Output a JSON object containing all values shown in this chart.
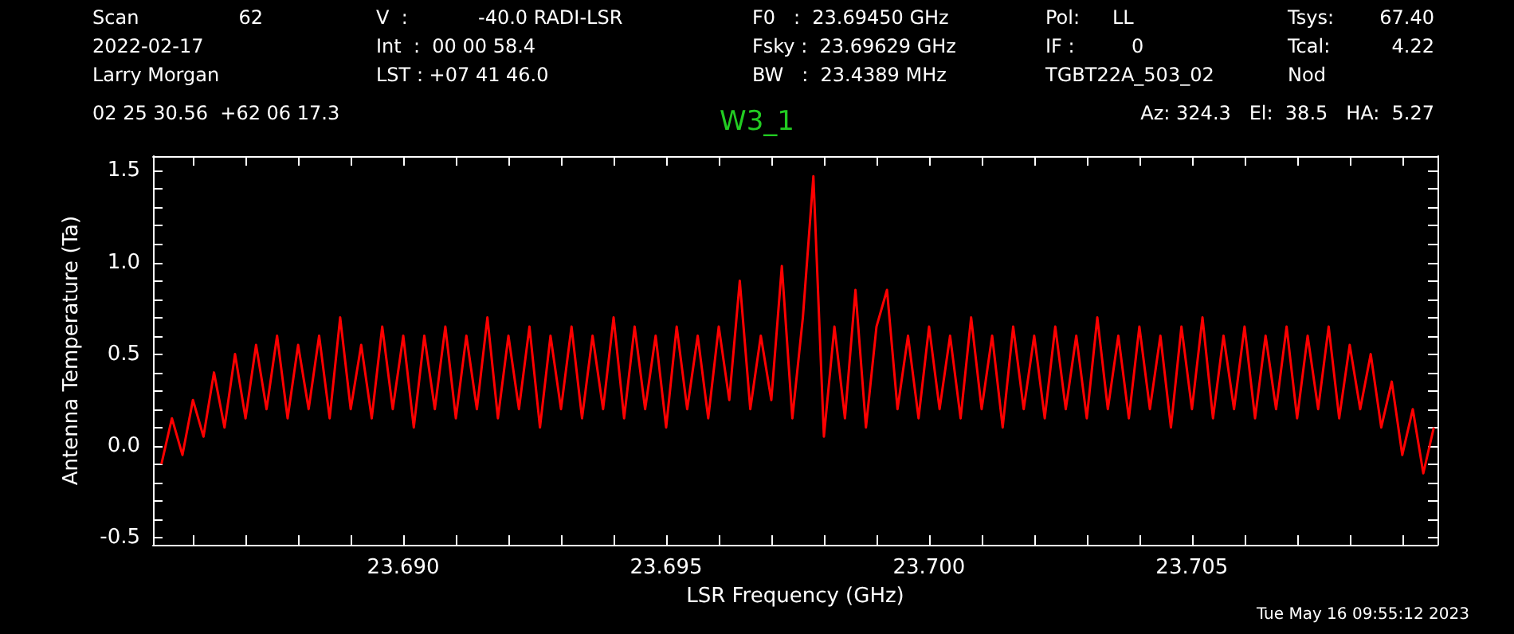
{
  "chart_data": {
    "type": "line",
    "title": "W3_1",
    "xlabel": "LSR Frequency (GHz)",
    "ylabel": "Antenna Temperature (Ta)",
    "annotations": [
      "Scan",
      "62",
      "2022-02-17",
      "Larry Morgan",
      "V  :",
      "-40.0 RADI-LSR",
      "Int  :  00 00 58.4",
      "LST : +07 41 46.0",
      "F0   :  23.69450 GHz",
      "Fsky :  23.69629 GHz",
      "BW   :  23.4389 MHz",
      "Pol:",
      "LL",
      "IF :",
      "0",
      "TGBT22A_503_02",
      "Tsys:",
      "67.40",
      "Tcal:",
      "4.22",
      "Nod",
      "02 25 30.56  +62 06 17.3",
      "Az: 324.3   El:  38.5   HA:  5.27",
      "Tue May 16 09:55:12 2023"
    ],
    "xlim": [
      23.68524,
      23.70967
    ],
    "ylim": [
      -0.54,
      1.58
    ],
    "xticks": [
      {
        "value": 23.686,
        "label": null
      },
      {
        "value": 23.687,
        "label": null
      },
      {
        "value": 23.688,
        "label": null
      },
      {
        "value": 23.689,
        "label": null
      },
      {
        "value": 23.69,
        "label": "23.690"
      },
      {
        "value": 23.691,
        "label": null
      },
      {
        "value": 23.692,
        "label": null
      },
      {
        "value": 23.693,
        "label": null
      },
      {
        "value": 23.694,
        "label": null
      },
      {
        "value": 23.695,
        "label": "23.695"
      },
      {
        "value": 23.696,
        "label": null
      },
      {
        "value": 23.697,
        "label": null
      },
      {
        "value": 23.698,
        "label": null
      },
      {
        "value": 23.699,
        "label": null
      },
      {
        "value": 23.7,
        "label": "23.700"
      },
      {
        "value": 23.701,
        "label": null
      },
      {
        "value": 23.702,
        "label": null
      },
      {
        "value": 23.703,
        "label": null
      },
      {
        "value": 23.704,
        "label": null
      },
      {
        "value": 23.705,
        "label": "23.705"
      },
      {
        "value": 23.706,
        "label": null
      },
      {
        "value": 23.707,
        "label": null
      },
      {
        "value": 23.708,
        "label": null
      },
      {
        "value": 23.709,
        "label": null
      }
    ],
    "yticks": [
      -0.5,
      {
        "value": -0.4,
        "label": null
      },
      {
        "value": -0.3,
        "label": null
      },
      {
        "value": -0.2,
        "label": null
      },
      {
        "value": -0.1,
        "label": null
      },
      {
        "value": 0,
        "label": "0.0"
      },
      {
        "value": 0.1,
        "label": null
      },
      {
        "value": 0.2,
        "label": null
      },
      {
        "value": 0.3,
        "label": null
      },
      {
        "value": 0.4,
        "label": null
      },
      0.5,
      {
        "value": 0.6,
        "label": null
      },
      {
        "value": 0.7,
        "label": null
      },
      {
        "value": 0.8,
        "label": null
      },
      {
        "value": 0.9,
        "label": null
      },
      {
        "value": 1,
        "label": "1.0"
      },
      {
        "value": 1.1,
        "label": null
      },
      {
        "value": 1.2,
        "label": null
      },
      {
        "value": 1.3,
        "label": null
      },
      {
        "value": 1.4,
        "label": null
      },
      1.5
    ],
    "marker": "none",
    "line_style": "solid",
    "grid": false,
    "series": [
      {
        "color": "#ff0000",
        "x": [
          23.6854,
          23.6856,
          23.6858,
          23.686,
          23.6862,
          23.6864,
          23.6866,
          23.6868,
          23.687,
          23.6872,
          23.6874,
          23.6876,
          23.6878,
          23.688,
          23.6882,
          23.6884,
          23.6886,
          23.6888,
          23.689,
          23.6892,
          23.6894,
          23.6896,
          23.6898,
          23.69,
          23.6902,
          23.6904,
          23.6906,
          23.6908,
          23.691,
          23.6912,
          23.6914,
          23.6916,
          23.6918,
          23.692,
          23.6922,
          23.6924,
          23.6926,
          23.6928,
          23.693,
          23.6932,
          23.6934,
          23.6936,
          23.6938,
          23.694,
          23.6942,
          23.6944,
          23.6946,
          23.6948,
          23.695,
          23.6952,
          23.6954,
          23.6956,
          23.6958,
          23.696,
          23.6962,
          23.6964,
          23.6966,
          23.6968,
          23.697,
          23.6972,
          23.6974,
          23.6976,
          23.6978,
          23.698,
          23.6982,
          23.6984,
          23.6986,
          23.6988,
          23.699,
          23.6992,
          23.6994,
          23.6996,
          23.6998,
          23.7,
          23.7002,
          23.7004,
          23.7006,
          23.7008,
          23.701,
          23.7012,
          23.7014,
          23.7016,
          23.7018,
          23.702,
          23.7022,
          23.7024,
          23.7026,
          23.7028,
          23.703,
          23.7032,
          23.7034,
          23.7036,
          23.7038,
          23.704,
          23.7042,
          23.7044,
          23.7046,
          23.7048,
          23.705,
          23.7052,
          23.7054,
          23.7056,
          23.7058,
          23.706,
          23.7062,
          23.7064,
          23.7066,
          23.7068,
          23.707,
          23.7072,
          23.7074,
          23.7076,
          23.7078,
          23.708,
          23.7082,
          23.7084,
          23.7086,
          23.7088,
          23.709,
          23.7092,
          23.7094,
          23.7096
        ],
        "values": [
          -0.1,
          0.15,
          -0.05,
          0.25,
          0.05,
          0.4,
          0.1,
          0.5,
          0.15,
          0.55,
          0.2,
          0.6,
          0.15,
          0.55,
          0.2,
          0.6,
          0.15,
          0.7,
          0.2,
          0.55,
          0.15,
          0.65,
          0.2,
          0.6,
          0.1,
          0.6,
          0.2,
          0.65,
          0.15,
          0.6,
          0.2,
          0.7,
          0.15,
          0.6,
          0.2,
          0.65,
          0.1,
          0.6,
          0.2,
          0.65,
          0.15,
          0.6,
          0.2,
          0.7,
          0.15,
          0.65,
          0.2,
          0.6,
          0.1,
          0.65,
          0.2,
          0.6,
          0.15,
          0.65,
          0.25,
          0.9,
          0.2,
          0.6,
          0.25,
          0.98,
          0.15,
          0.7,
          1.47,
          0.05,
          0.65,
          0.15,
          0.85,
          0.1,
          0.65,
          0.85,
          0.2,
          0.6,
          0.15,
          0.65,
          0.2,
          0.6,
          0.15,
          0.7,
          0.2,
          0.6,
          0.1,
          0.65,
          0.2,
          0.6,
          0.15,
          0.65,
          0.2,
          0.6,
          0.15,
          0.7,
          0.2,
          0.6,
          0.15,
          0.65,
          0.2,
          0.6,
          0.1,
          0.65,
          0.2,
          0.7,
          0.15,
          0.6,
          0.2,
          0.65,
          0.15,
          0.6,
          0.2,
          0.65,
          0.15,
          0.6,
          0.2,
          0.65,
          0.15,
          0.55,
          0.2,
          0.5,
          0.1,
          0.35,
          -0.05,
          0.2,
          -0.15,
          0.1
        ]
      }
    ]
  }
}
